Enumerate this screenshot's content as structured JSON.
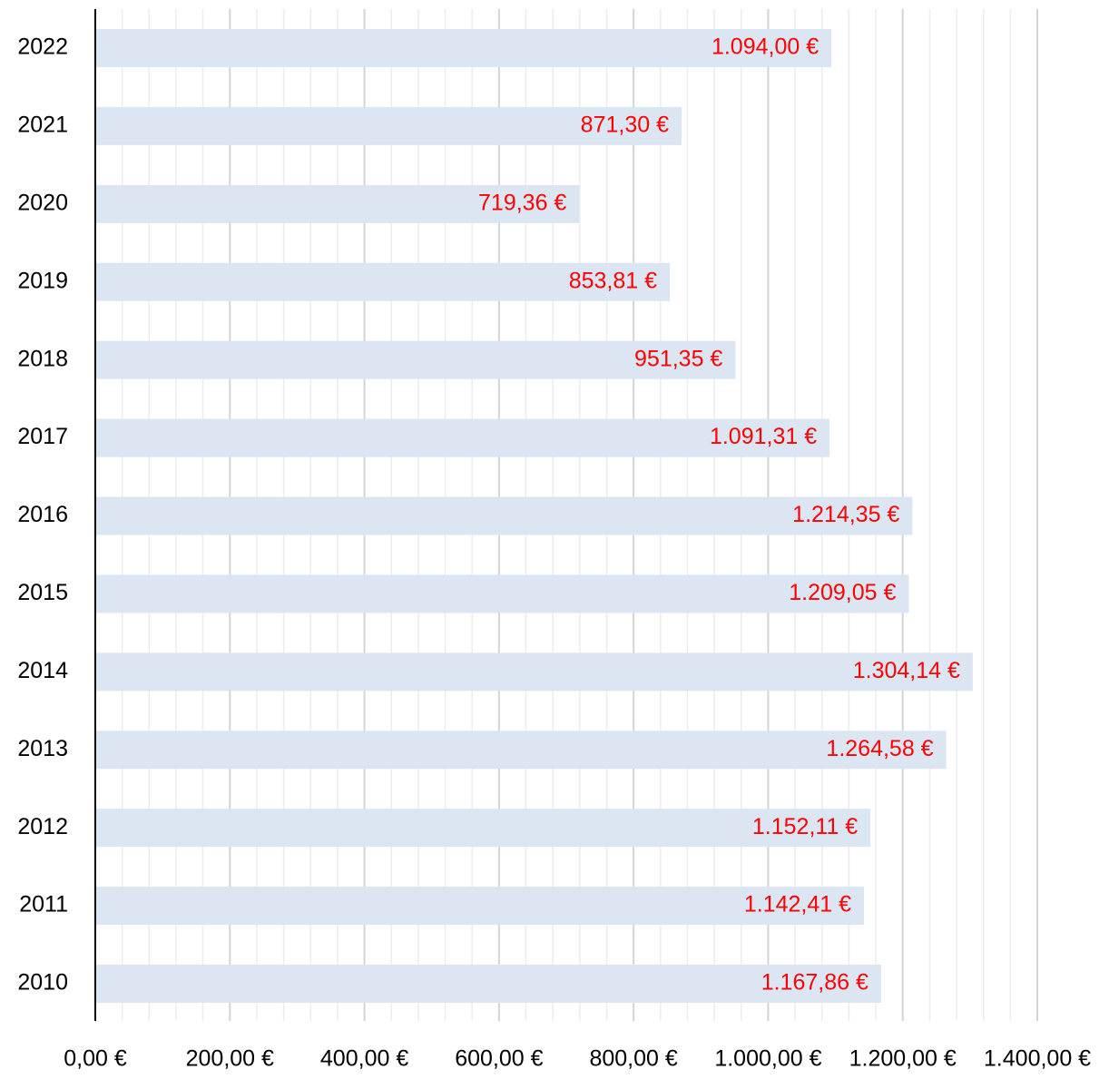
{
  "chart_data": {
    "type": "barh",
    "categories": [
      "2022",
      "2021",
      "2020",
      "2019",
      "2018",
      "2017",
      "2016",
      "2015",
      "2014",
      "2013",
      "2012",
      "2011",
      "2010"
    ],
    "values": [
      1094.0,
      871.3,
      719.36,
      853.81,
      951.35,
      1091.31,
      1214.35,
      1209.05,
      1304.14,
      1264.58,
      1152.11,
      1142.41,
      1167.86
    ],
    "value_labels": [
      "1.094,00 €",
      "871,30 €",
      "719,36 €",
      "853,81 €",
      "951,35 €",
      "1.091,31 €",
      "1.214,35 €",
      "1.209,05 €",
      "1.304,14 €",
      "1.264,58 €",
      "1.152,11 €",
      "1.142,41 €",
      "1.167,86 €"
    ],
    "color": "#dce6f2",
    "label_color": "#ff0000",
    "xlim": [
      0,
      1400
    ],
    "xticks": [
      {
        "value": 0,
        "label": "0,00 €"
      },
      {
        "value": 200,
        "label": "200,00 €"
      },
      {
        "value": 400,
        "label": "400,00 €"
      },
      {
        "value": 600,
        "label": "600,00 €"
      },
      {
        "value": 800,
        "label": "800,00 €"
      },
      {
        "value": 1000,
        "label": "1.000,00 €"
      },
      {
        "value": 1200,
        "label": "1.200,00 €"
      },
      {
        "value": 1400,
        "label": "1.400,00 €"
      }
    ],
    "minor_xticks": [
      40,
      80,
      120,
      160,
      240,
      280,
      320,
      360,
      440,
      480,
      520,
      560,
      640,
      680,
      720,
      760,
      840,
      880,
      920,
      960,
      1040,
      1080,
      1120,
      1160,
      1240,
      1280,
      1320,
      1360
    ],
    "grid": true
  }
}
